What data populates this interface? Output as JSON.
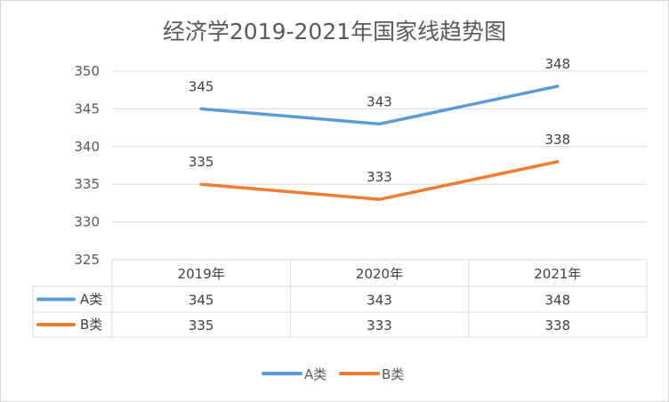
{
  "chart_data": {
    "type": "line",
    "title": "经济学2019-2021年国家线趋势图",
    "categories": [
      "2019年",
      "2020年",
      "2021年"
    ],
    "series": [
      {
        "name": "A类",
        "values": [
          345,
          343,
          348
        ],
        "color": "#5b9bd5"
      },
      {
        "name": "B类",
        "values": [
          335,
          333,
          338
        ],
        "color": "#ed7d31"
      }
    ],
    "ylim": [
      325,
      350
    ],
    "yticks": [
      325,
      330,
      335,
      340,
      345,
      350
    ],
    "grid": true,
    "data_table": true,
    "legend_position": "bottom"
  }
}
